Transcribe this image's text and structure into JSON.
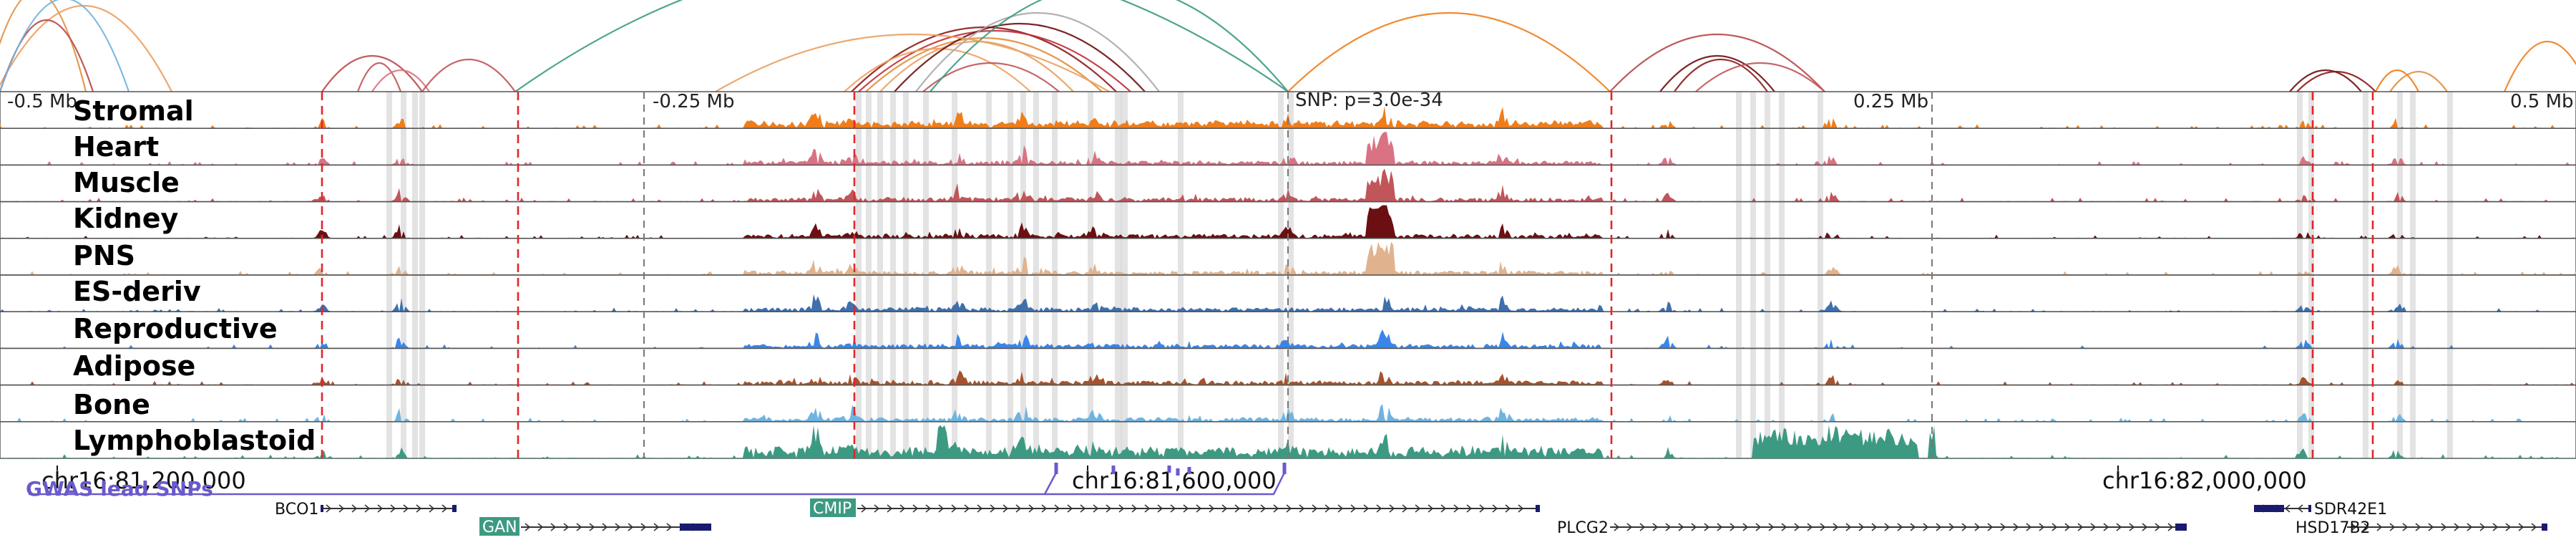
{
  "axis_labels": {
    "left": "-0.5 Mb",
    "mid_left": "-0.25 Mb",
    "snp": "SNP: p=3.0e-34",
    "mid_right": "0.25 Mb",
    "right": "0.5 Mb"
  },
  "tracks": [
    {
      "name": "Stromal",
      "color": "#f07d1a"
    },
    {
      "name": "Heart",
      "color": "#d97384"
    },
    {
      "name": "Muscle",
      "color": "#c0555a"
    },
    {
      "name": "Kidney",
      "color": "#6b0f12"
    },
    {
      "name": "PNS",
      "color": "#e0b38e"
    },
    {
      "name": "ES-deriv",
      "color": "#3f6fad"
    },
    {
      "name": "Reproductive",
      "color": "#3a86e8"
    },
    {
      "name": "Adipose",
      "color": "#a5532e"
    },
    {
      "name": "Bone",
      "color": "#6fb4e0"
    },
    {
      "name": "Lymphoblastoid",
      "color": "#3d9a82"
    }
  ],
  "coordinates": [
    {
      "label": "chr16:81,200,000"
    },
    {
      "label": "chr16:81,600,000"
    },
    {
      "label": "chr16:82,000,000"
    }
  ],
  "gwas_label": "GWAS lead SNPs",
  "genes": [
    {
      "name": "BCO1",
      "highlighted": false
    },
    {
      "name": "GAN",
      "highlighted": true
    },
    {
      "name": "CMIP",
      "highlighted": true
    },
    {
      "name": "PLCG2",
      "highlighted": false
    },
    {
      "name": "SDR42E1",
      "highlighted": false
    },
    {
      "name": "HSD17B2",
      "highlighted": false
    }
  ],
  "colors": {
    "gwas": "#6a5acd",
    "gene_highlight": "#3d9a82",
    "gene_line": "#333333",
    "red_dash": "#e0262c",
    "gray_band": "#d9d9d9",
    "exon": "#1a1a6e"
  }
}
